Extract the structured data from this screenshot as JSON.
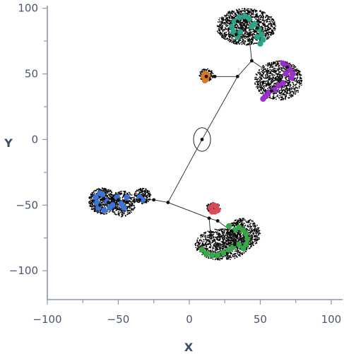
{
  "chart_data": {
    "type": "scatter",
    "xlabel": "X",
    "ylabel": "Y",
    "xlim": [
      -100,
      108
    ],
    "ylim": [
      -122,
      102
    ],
    "xticks": [
      -100,
      -50,
      0,
      50,
      100
    ],
    "yticks": [
      -100,
      -50,
      0,
      50,
      100
    ],
    "xtick_labels": [
      "−100",
      "−50",
      "0",
      "50",
      "100"
    ],
    "ytick_labels": [
      "−100",
      "−50",
      "0",
      "50",
      "100"
    ],
    "grid": false,
    "colors": {
      "teal": "#2aa58a",
      "purple": "#9b2fcc",
      "orange": "#d9781e",
      "blue": "#3b73d6",
      "red": "#d84a5a",
      "green": "#37a84a"
    },
    "root": {
      "x": 9,
      "y": 0
    },
    "root_ellipse": {
      "rx": 6,
      "ry": 9
    },
    "nodes": [
      {
        "x": 9,
        "y": 0
      },
      {
        "x": 34,
        "y": 48
      },
      {
        "x": 44,
        "y": 60
      },
      {
        "x": 18,
        "y": 48
      },
      {
        "x": 12,
        "y": 48
      },
      {
        "x": -15,
        "y": -48
      },
      {
        "x": -25,
        "y": -46
      },
      {
        "x": 14,
        "y": -60
      },
      {
        "x": 20,
        "y": -62
      },
      {
        "x": 30,
        "y": -70
      },
      {
        "x": 15,
        "y": -73
      },
      {
        "x": 20,
        "y": -80
      },
      {
        "x": 32,
        "y": -80
      },
      {
        "x": 42,
        "y": 80
      },
      {
        "x": 37,
        "y": 85
      },
      {
        "x": 40,
        "y": 90
      },
      {
        "x": 34,
        "y": 90
      },
      {
        "x": 33,
        "y": 80
      },
      {
        "x": 48,
        "y": 85
      },
      {
        "x": 55,
        "y": 52
      },
      {
        "x": 60,
        "y": 52
      },
      {
        "x": 64,
        "y": 46
      },
      {
        "x": 56,
        "y": 42
      },
      {
        "x": 58,
        "y": 37
      },
      {
        "x": 69,
        "y": 55
      },
      {
        "x": -35,
        "y": -46
      },
      {
        "x": -44,
        "y": -48
      },
      {
        "x": -50,
        "y": -46
      },
      {
        "x": -57,
        "y": -48
      },
      {
        "x": -60,
        "y": -45
      },
      {
        "x": -63,
        "y": -50
      }
    ],
    "edges": [
      [
        0,
        1
      ],
      [
        1,
        3
      ],
      [
        3,
        4
      ],
      [
        1,
        2
      ],
      [
        0,
        5
      ],
      [
        5,
        6
      ],
      [
        5,
        7
      ],
      [
        7,
        8
      ],
      [
        8,
        9
      ],
      [
        7,
        10
      ],
      [
        10,
        11
      ],
      [
        11,
        12
      ],
      [
        9,
        12
      ],
      [
        2,
        13
      ],
      [
        13,
        14
      ],
      [
        14,
        15
      ],
      [
        14,
        16
      ],
      [
        13,
        17
      ],
      [
        13,
        18
      ],
      [
        2,
        19
      ],
      [
        19,
        20
      ],
      [
        20,
        21
      ],
      [
        19,
        22
      ],
      [
        22,
        23
      ],
      [
        20,
        24
      ],
      [
        6,
        25
      ],
      [
        25,
        26
      ],
      [
        26,
        27
      ],
      [
        27,
        28
      ],
      [
        28,
        29
      ],
      [
        28,
        30
      ]
    ],
    "leaf_clusters": [
      {
        "color": "teal",
        "points": [
          {
            "x": 30,
            "y": 86
          },
          {
            "x": 32,
            "y": 90
          },
          {
            "x": 35,
            "y": 93
          },
          {
            "x": 39,
            "y": 94
          },
          {
            "x": 42,
            "y": 92
          },
          {
            "x": 46,
            "y": 88
          },
          {
            "x": 49,
            "y": 84
          },
          {
            "x": 51,
            "y": 80
          },
          {
            "x": 52,
            "y": 76
          },
          {
            "x": 50,
            "y": 73
          },
          {
            "x": 31,
            "y": 82
          },
          {
            "x": 34,
            "y": 78
          },
          {
            "x": 44,
            "y": 86
          },
          {
            "x": 48,
            "y": 78
          },
          {
            "x": 36,
            "y": 82
          }
        ]
      },
      {
        "color": "purple",
        "points": [
          {
            "x": 66,
            "y": 58
          },
          {
            "x": 69,
            "y": 56
          },
          {
            "x": 71,
            "y": 53
          },
          {
            "x": 73,
            "y": 50
          },
          {
            "x": 72,
            "y": 47
          },
          {
            "x": 66,
            "y": 43
          },
          {
            "x": 63,
            "y": 41
          },
          {
            "x": 56,
            "y": 36
          },
          {
            "x": 54,
            "y": 33
          },
          {
            "x": 52,
            "y": 31
          },
          {
            "x": 60,
            "y": 38
          },
          {
            "x": 68,
            "y": 50
          }
        ]
      },
      {
        "color": "orange",
        "points": [
          {
            "x": 10,
            "y": 48
          },
          {
            "x": 11,
            "y": 50
          },
          {
            "x": 12,
            "y": 46
          },
          {
            "x": 13,
            "y": 49
          },
          {
            "x": 11,
            "y": 45
          }
        ]
      },
      {
        "color": "blue",
        "points": [
          {
            "x": -63,
            "y": -41
          },
          {
            "x": -61,
            "y": -42
          },
          {
            "x": -66,
            "y": -44
          },
          {
            "x": -65,
            "y": -48
          },
          {
            "x": -64,
            "y": -52
          },
          {
            "x": -60,
            "y": -54
          },
          {
            "x": -56,
            "y": -52
          },
          {
            "x": -54,
            "y": -50
          },
          {
            "x": -51,
            "y": -44
          },
          {
            "x": -48,
            "y": -49
          },
          {
            "x": -46,
            "y": -52
          },
          {
            "x": -44,
            "y": -44
          },
          {
            "x": -35,
            "y": -44
          },
          {
            "x": -33,
            "y": -46
          },
          {
            "x": -58,
            "y": -47
          }
        ]
      },
      {
        "color": "red",
        "points": [
          {
            "x": 15,
            "y": -52
          },
          {
            "x": 17,
            "y": -50
          },
          {
            "x": 19,
            "y": -51
          },
          {
            "x": 20,
            "y": -54
          },
          {
            "x": 18,
            "y": -55
          },
          {
            "x": 16,
            "y": -55
          }
        ]
      },
      {
        "color": "green",
        "points": [
          {
            "x": 9,
            "y": -84
          },
          {
            "x": 12,
            "y": -87
          },
          {
            "x": 16,
            "y": -88
          },
          {
            "x": 20,
            "y": -88
          },
          {
            "x": 24,
            "y": -86
          },
          {
            "x": 28,
            "y": -84
          },
          {
            "x": 31,
            "y": -82
          },
          {
            "x": 35,
            "y": -80
          },
          {
            "x": 38,
            "y": -83
          },
          {
            "x": 40,
            "y": -80
          },
          {
            "x": 41,
            "y": -76
          },
          {
            "x": 40,
            "y": -72
          },
          {
            "x": 38,
            "y": -69
          },
          {
            "x": 35,
            "y": -67
          },
          {
            "x": 32,
            "y": -69
          },
          {
            "x": 28,
            "y": -66
          }
        ]
      }
    ],
    "halo_regions": [
      {
        "cx": 40,
        "cy": 86,
        "rx": 21,
        "ry": 14,
        "count": 1300
      },
      {
        "cx": 63,
        "cy": 45,
        "rx": 17,
        "ry": 15,
        "count": 900
      },
      {
        "cx": 12,
        "cy": 49,
        "rx": 5,
        "ry": 5,
        "count": 160
      },
      {
        "cx": -61,
        "cy": -47,
        "rx": 10,
        "ry": 10,
        "count": 550
      },
      {
        "cx": -47,
        "cy": -49,
        "rx": 9,
        "ry": 10,
        "count": 420
      },
      {
        "cx": -33,
        "cy": -43,
        "rx": 6,
        "ry": 6,
        "count": 200
      },
      {
        "cx": 23,
        "cy": -80,
        "rx": 19,
        "ry": 12,
        "count": 950
      },
      {
        "cx": 38,
        "cy": -72,
        "rx": 12,
        "ry": 12,
        "count": 600
      },
      {
        "cx": 17,
        "cy": -52,
        "rx": 5,
        "ry": 4,
        "count": 120
      }
    ]
  }
}
